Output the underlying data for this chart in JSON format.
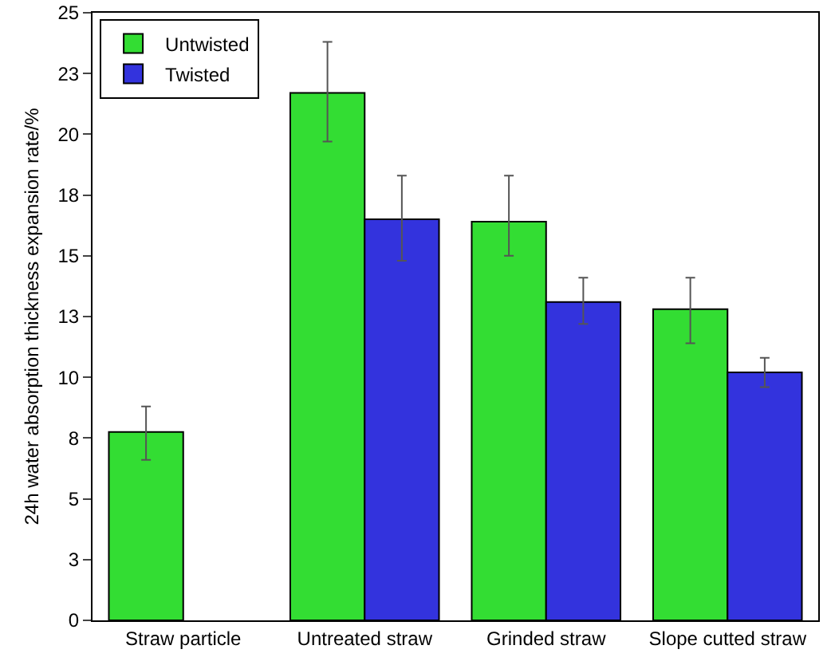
{
  "chart_data": {
    "type": "bar",
    "ylabel": "24h water absorption thickness expansion rate/%",
    "categories": [
      "Straw particle",
      "Untreated straw",
      "Grinded straw",
      "Slope cutted straw"
    ],
    "series": [
      {
        "name": "Untwisted",
        "color": "#33dd33",
        "values": [
          7.75,
          21.7,
          16.4,
          12.8
        ],
        "errors": [
          [
            6.6,
            8.8
          ],
          [
            19.7,
            23.8
          ],
          [
            15.0,
            18.3
          ],
          [
            11.4,
            14.1
          ]
        ]
      },
      {
        "name": "Twisted",
        "color": "#3333dd",
        "values": [
          null,
          16.5,
          13.1,
          10.2
        ],
        "errors": [
          null,
          [
            14.8,
            18.3
          ],
          [
            12.2,
            14.1
          ],
          [
            9.6,
            10.8
          ]
        ]
      }
    ],
    "ylim": [
      0,
      25
    ],
    "yticks": [
      0,
      {
        "value": 2.5,
        "label": "3"
      },
      5,
      {
        "value": 7.5,
        "label": "8"
      },
      10,
      {
        "value": 12.5,
        "label": "13"
      },
      15,
      {
        "value": 17.5,
        "label": "18"
      },
      20,
      {
        "value": 22.5,
        "label": "23"
      },
      25
    ],
    "grid": false,
    "legend": "top left"
  }
}
